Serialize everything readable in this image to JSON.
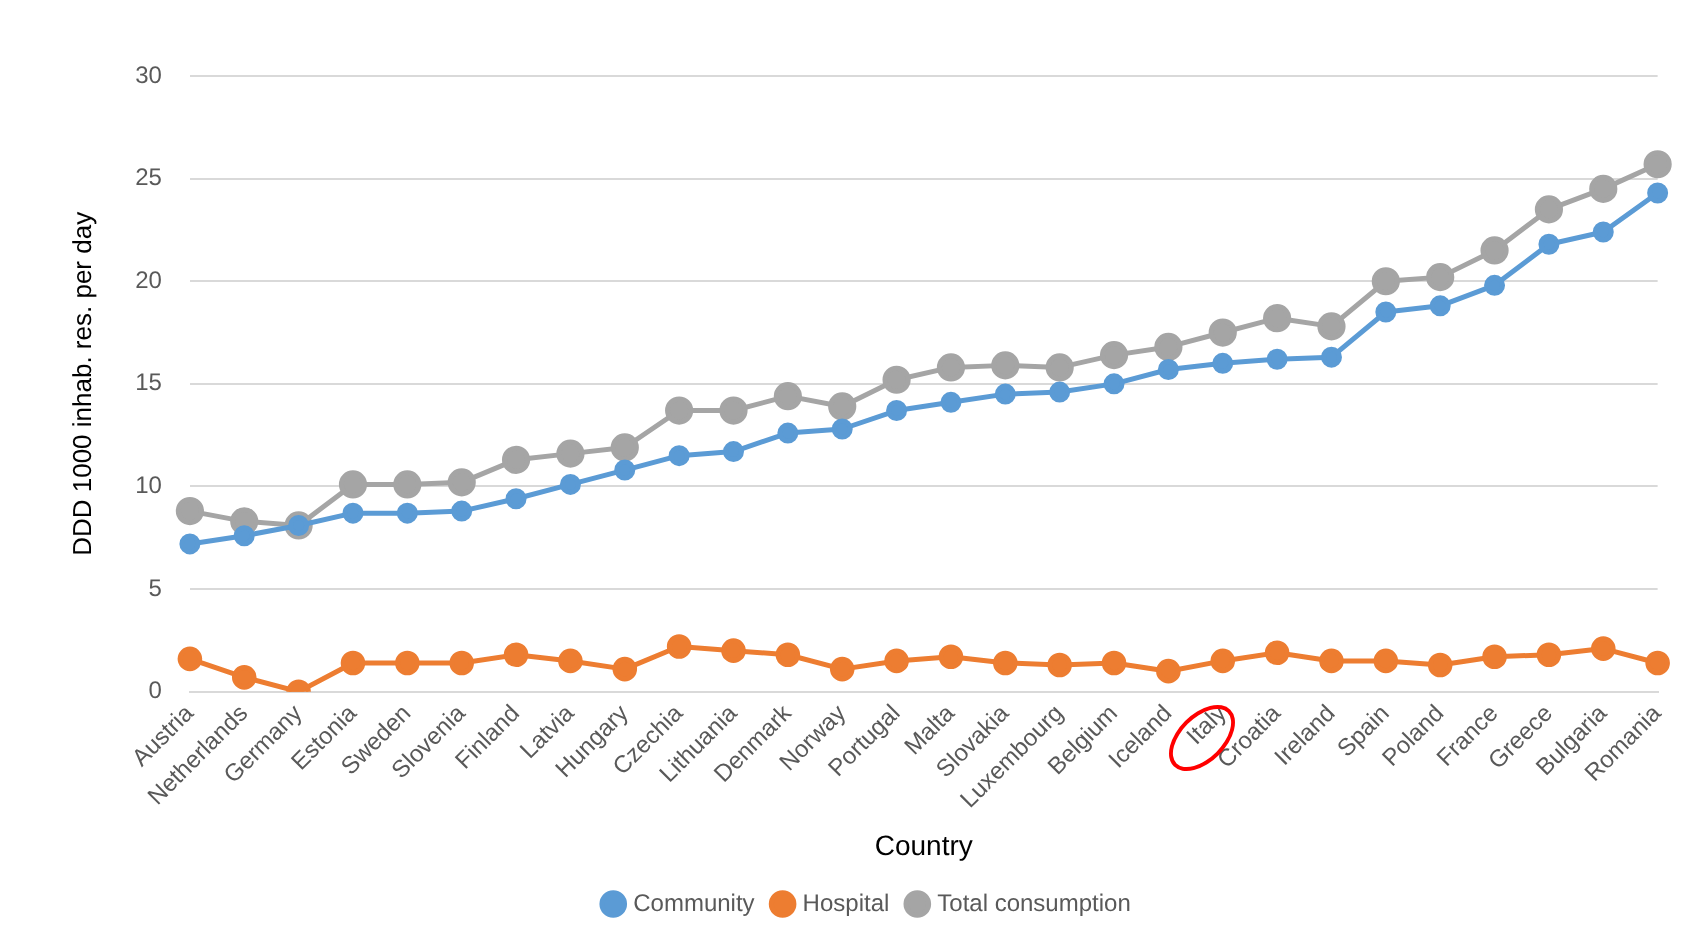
{
  "chart_data": {
    "type": "line",
    "xlabel": "Country",
    "ylabel": "DDD 1000 inhab. res. per day",
    "categories": [
      "Austria",
      "Netherlands",
      "Germany",
      "Estonia",
      "Sweden",
      "Slovenia",
      "Finland",
      "Latvia",
      "Hungary",
      "Czechia",
      "Lithuania",
      "Denmark",
      "Norway",
      "Portugal",
      "Malta",
      "Slovakia",
      "Luxembourg",
      "Belgium",
      "Iceland",
      "Italy",
      "Croatia",
      "Ireland",
      "Spain",
      "Poland",
      "France",
      "Greece",
      "Bulgaria",
      "Romania"
    ],
    "series": [
      {
        "name": "Community",
        "color": "#5b9bd5",
        "values": [
          7.2,
          7.6,
          8.1,
          8.7,
          8.7,
          8.8,
          9.4,
          10.1,
          10.8,
          11.5,
          11.7,
          12.6,
          12.8,
          13.7,
          14.1,
          14.5,
          14.6,
          15.0,
          15.7,
          16.0,
          16.2,
          16.3,
          18.5,
          18.8,
          19.8,
          21.8,
          22.4,
          24.3
        ]
      },
      {
        "name": "Hospital",
        "color": "#ed7d31",
        "values": [
          1.6,
          0.7,
          0.0,
          1.4,
          1.4,
          1.4,
          1.8,
          1.5,
          1.1,
          2.2,
          2.0,
          1.8,
          1.1,
          1.5,
          1.7,
          1.4,
          1.3,
          1.4,
          1.0,
          1.5,
          1.9,
          1.5,
          1.5,
          1.3,
          1.7,
          1.8,
          2.1,
          1.4
        ]
      },
      {
        "name": "Total consumption",
        "color": "#a5a5a5",
        "values": [
          8.8,
          8.3,
          8.1,
          10.1,
          10.1,
          10.2,
          11.3,
          11.6,
          11.9,
          13.7,
          13.7,
          14.4,
          13.9,
          15.2,
          15.8,
          15.9,
          15.8,
          16.4,
          16.8,
          17.5,
          18.2,
          17.8,
          20.0,
          20.2,
          21.5,
          23.5,
          24.5,
          25.7
        ]
      }
    ],
    "ylim": [
      0,
      30
    ],
    "yticks": [
      0,
      5,
      10,
      15,
      20,
      25,
      30
    ],
    "grid": "y",
    "legend": "bottom",
    "marker": "circle",
    "line_style": "solid"
  }
}
